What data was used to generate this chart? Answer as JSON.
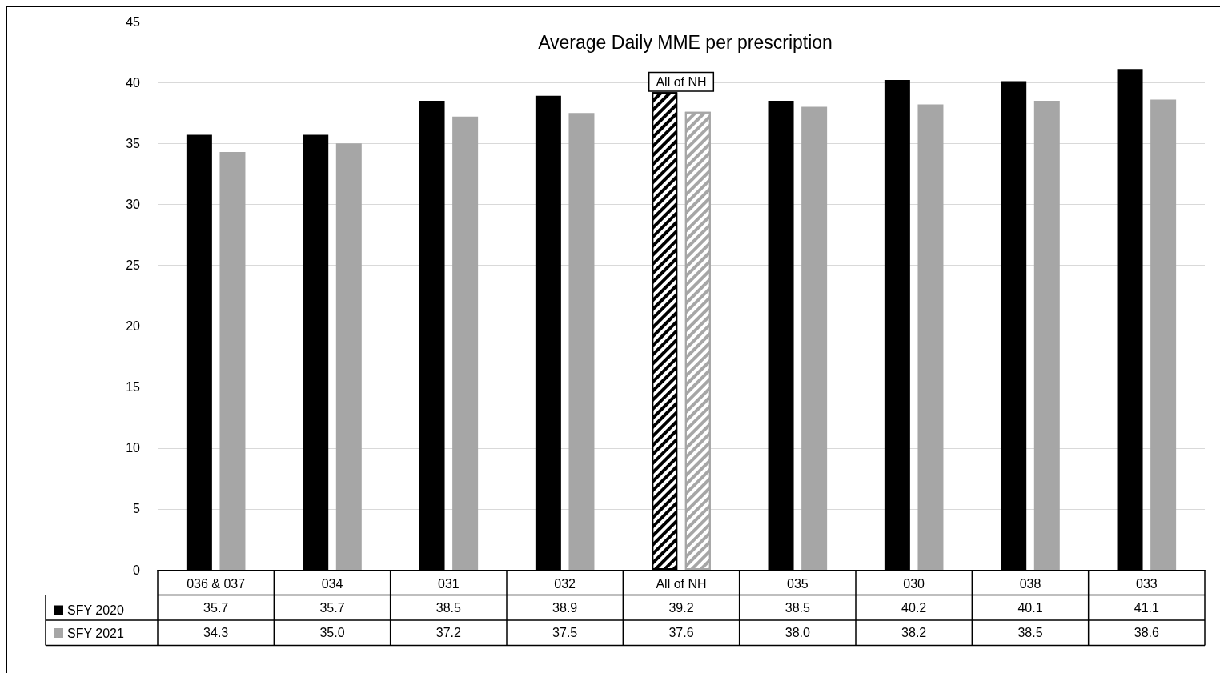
{
  "chart_data": {
    "type": "bar",
    "title": "Average Daily MME per prescription",
    "categories": [
      "036 & 037",
      "034",
      "031",
      "032",
      "All of NH",
      "035",
      "030",
      "038",
      "033"
    ],
    "series": [
      {
        "name": "SFY 2020",
        "color": "#000000",
        "values": [
          35.7,
          35.7,
          38.5,
          38.9,
          39.2,
          38.5,
          40.2,
          40.1,
          41.1
        ],
        "value_labels": [
          "35.7",
          "35.7",
          "38.5",
          "38.9",
          "39.2",
          "38.5",
          "40.2",
          "40.1",
          "41.1"
        ]
      },
      {
        "name": "SFY 2021",
        "color": "#a6a6a6",
        "values": [
          34.3,
          35.0,
          37.2,
          37.5,
          37.6,
          38.0,
          38.2,
          38.5,
          38.6
        ],
        "value_labels": [
          "34.3",
          "35.0",
          "37.2",
          "37.5",
          "37.6",
          "38.0",
          "38.2",
          "38.5",
          "38.6"
        ]
      }
    ],
    "ylim": [
      0,
      45
    ],
    "yticks": [
      0,
      5,
      10,
      15,
      20,
      25,
      30,
      35,
      40,
      45
    ],
    "grid": "y",
    "legend": "bottom left",
    "annotations": [
      "All of NH"
    ]
  }
}
